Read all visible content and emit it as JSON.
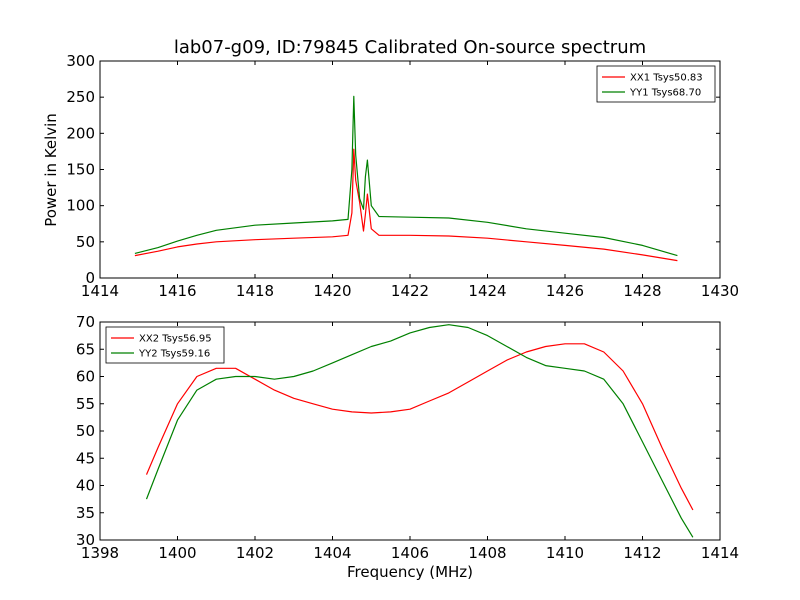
{
  "figure": {
    "title": "lab07-g09, ID:79845 Calibrated On-source spectrum"
  },
  "colors": {
    "xx": "#ff0000",
    "yy": "#008000",
    "axes": "#000000"
  },
  "chart_data": [
    {
      "type": "line",
      "title": "lab07-g09, ID:79845 Calibrated On-source spectrum",
      "xlabel": "",
      "ylabel": "Power in Kelvin",
      "xlim": [
        1414,
        1430
      ],
      "ylim": [
        0,
        300
      ],
      "xticks": [
        1414,
        1416,
        1418,
        1420,
        1422,
        1424,
        1426,
        1428,
        1430
      ],
      "yticks": [
        0,
        50,
        100,
        150,
        200,
        250,
        300
      ],
      "grid": false,
      "legend_position": "top-right",
      "series": [
        {
          "name": "XX1 Tsys50.83",
          "color": "#ff0000",
          "x": [
            1414.9,
            1415.5,
            1416.0,
            1416.5,
            1417.0,
            1418.0,
            1419.0,
            1420.0,
            1420.4,
            1420.5,
            1420.55,
            1420.6,
            1420.7,
            1420.8,
            1420.85,
            1420.9,
            1421.0,
            1421.2,
            1422.0,
            1423.0,
            1424.0,
            1425.0,
            1426.0,
            1427.0,
            1428.0,
            1428.9
          ],
          "y": [
            31,
            37,
            43,
            47,
            50,
            53,
            55,
            57,
            59,
            90,
            178,
            135,
            105,
            65,
            88,
            116,
            68,
            59,
            59,
            58,
            55,
            50,
            45,
            40,
            32,
            24
          ]
        },
        {
          "name": "YY1 Tsys68.70",
          "color": "#008000",
          "x": [
            1414.9,
            1415.5,
            1416.0,
            1416.5,
            1417.0,
            1418.0,
            1419.0,
            1420.0,
            1420.4,
            1420.5,
            1420.55,
            1420.6,
            1420.7,
            1420.8,
            1420.85,
            1420.9,
            1421.0,
            1421.2,
            1422.0,
            1423.0,
            1424.0,
            1425.0,
            1426.0,
            1427.0,
            1428.0,
            1428.9
          ],
          "y": [
            34,
            42,
            51,
            59,
            66,
            73,
            76,
            79,
            81,
            150,
            251,
            170,
            110,
            95,
            140,
            163,
            100,
            85,
            84,
            83,
            77,
            68,
            62,
            56,
            45,
            31
          ]
        }
      ]
    },
    {
      "type": "line",
      "title": "",
      "xlabel": "Frequency (MHz)",
      "ylabel": "",
      "xlim": [
        1398,
        1414
      ],
      "ylim": [
        30,
        70
      ],
      "xticks": [
        1398,
        1400,
        1402,
        1404,
        1406,
        1408,
        1410,
        1412,
        1414
      ],
      "yticks": [
        30,
        35,
        40,
        45,
        50,
        55,
        60,
        65,
        70
      ],
      "grid": false,
      "legend_position": "top-left",
      "series": [
        {
          "name": "XX2 Tsys56.95",
          "color": "#ff0000",
          "x": [
            1399.2,
            1399.5,
            1400.0,
            1400.5,
            1401.0,
            1401.5,
            1402.0,
            1402.5,
            1403.0,
            1403.5,
            1404.0,
            1404.5,
            1405.0,
            1405.5,
            1406.0,
            1406.5,
            1407.0,
            1407.5,
            1408.0,
            1408.5,
            1409.0,
            1409.5,
            1410.0,
            1410.5,
            1411.0,
            1411.5,
            1412.0,
            1412.5,
            1413.0,
            1413.3
          ],
          "y": [
            42,
            47,
            55,
            60,
            61.5,
            61.5,
            59.5,
            57.5,
            56,
            55,
            54,
            53.5,
            53.3,
            53.5,
            54,
            55.5,
            57,
            59,
            61,
            63,
            64.5,
            65.5,
            66,
            66,
            64.5,
            61,
            55,
            47,
            39.5,
            35.5
          ]
        },
        {
          "name": "YY2 Tsys59.16",
          "color": "#008000",
          "x": [
            1399.2,
            1399.5,
            1400.0,
            1400.5,
            1401.0,
            1401.5,
            1402.0,
            1402.5,
            1403.0,
            1403.5,
            1404.0,
            1404.5,
            1405.0,
            1405.5,
            1406.0,
            1406.5,
            1407.0,
            1407.5,
            1408.0,
            1408.5,
            1409.0,
            1409.5,
            1410.0,
            1410.5,
            1411.0,
            1411.5,
            1412.0,
            1412.5,
            1413.0,
            1413.3
          ],
          "y": [
            37.5,
            43,
            52,
            57.5,
            59.5,
            60,
            60,
            59.5,
            60,
            61,
            62.5,
            64,
            65.5,
            66.5,
            68,
            69,
            69.5,
            69,
            67.5,
            65.5,
            63.5,
            62,
            61.5,
            61,
            59.5,
            55,
            48,
            41,
            34,
            30.5
          ]
        }
      ]
    }
  ]
}
